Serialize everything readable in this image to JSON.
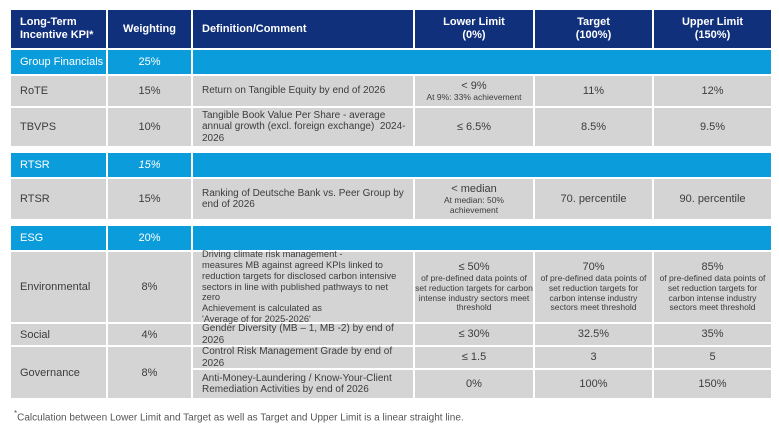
{
  "colors": {
    "header_navy": "#10307C",
    "section_blue": "#0B9DDB",
    "row_grey": "#D4D4D4",
    "text_dark": "#3C3C3C",
    "footnote_grey": "#555555"
  },
  "header": {
    "kpi": "Long-Term\nIncentive KPI*",
    "weighting": "Weighting",
    "definition": "Definition/Comment",
    "lower": "Lower Limit\n(0%)",
    "target": "Target\n(100%)",
    "upper": "Upper Limit\n(150%)"
  },
  "sections": [
    {
      "band": {
        "label": "Group Financials",
        "weighting": "25%"
      },
      "rows": [
        {
          "kpi": "RoTE",
          "weighting": "15%",
          "definition": "Return on Tangible Equity by end of 2026",
          "lower_main": "< 9%",
          "lower_sub": "At 9%: 33% achievement",
          "target_main": "11%",
          "upper_main": "12%"
        },
        {
          "kpi": "TBVPS",
          "weighting": "10%",
          "definition": "Tangible Book Value Per Share - average annual growth (excl. foreign exchange)  2024-2026",
          "lower_main": "≤ 6.5%",
          "target_main": "8.5%",
          "upper_main": "9.5%"
        }
      ]
    },
    {
      "band": {
        "label": "RTSR",
        "weighting": "15%"
      },
      "rows": [
        {
          "kpi": "RTSR",
          "weighting": "15%",
          "definition": "Ranking of Deutsche Bank vs. Peer Group by end of 2026",
          "lower_main": "< median",
          "lower_sub": "At median: 50%\nachievement",
          "target_main": "70. percentile",
          "upper_main": "90. percentile"
        }
      ]
    },
    {
      "band": {
        "label": "ESG",
        "weighting": "20%"
      },
      "rows": [
        {
          "kpi": "Environmental",
          "weighting": "8%",
          "definition": "Driving climate risk management -\nmeasures MB against agreed KPIs linked to\nreduction targets for disclosed carbon intensive\nsectors in line with published pathways to net zero\nAchievement is calculated as\n'Average of for 2025-2026'",
          "lower_main": "≤ 50%",
          "lower_sub": "of pre-defined data points of set reduction targets for carbon intense industry sectors meet threshold",
          "target_main": "70%",
          "target_sub": "of pre-defined data points of set reduction targets for carbon intense industry sectors meet threshold",
          "upper_main": "85%",
          "upper_sub": "of pre-defined data points of set reduction targets for carbon intense industry sectors meet threshold"
        },
        {
          "kpi": "Social",
          "weighting": "4%",
          "definition": "Gender Diversity (MB – 1, MB -2) by end of 2026",
          "lower_main": "≤ 30%",
          "target_main": "32.5%",
          "upper_main": "35%"
        }
      ],
      "group": {
        "kpi": "Governance",
        "weighting": "8%",
        "subrows": [
          {
            "definition": "Control Risk Management Grade by end of 2026",
            "lower_main": "≤ 1.5",
            "target_main": "3",
            "upper_main": "5"
          },
          {
            "definition": "Anti-Money-Laundering / Know-Your-Client Remediation Activities by end of 2026",
            "lower_main": "0%",
            "target_main": "100%",
            "upper_main": "150%"
          }
        ]
      }
    }
  ],
  "footnote": {
    "marker": "*",
    "text": "Calculation between Lower Limit and Target as well as Target and Upper Limit is a linear straight line."
  }
}
